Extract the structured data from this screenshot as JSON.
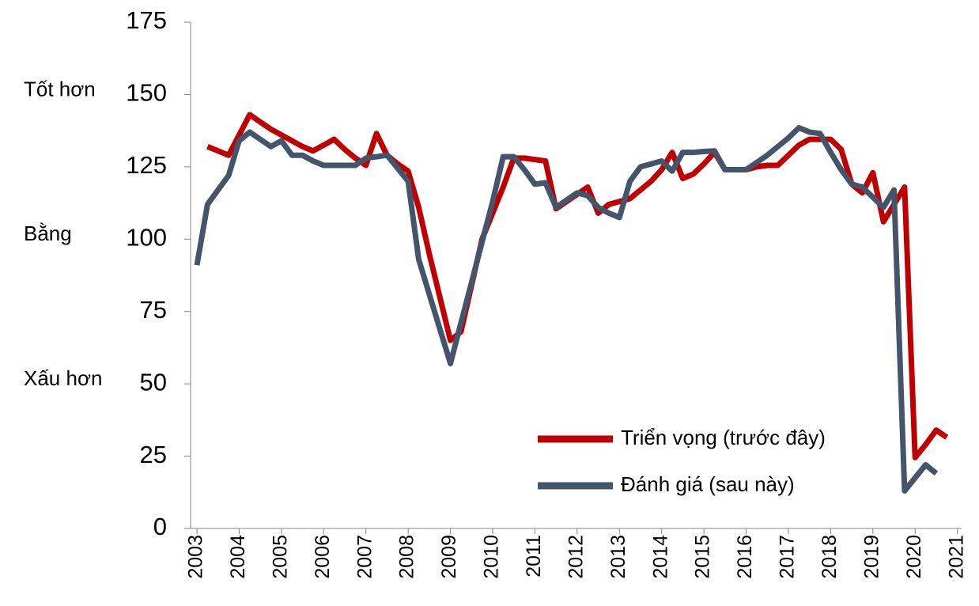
{
  "chart_data": {
    "type": "line",
    "x": [
      2003,
      2003.25,
      2003.5,
      2003.75,
      2004,
      2004.25,
      2004.5,
      2004.75,
      2005,
      2005.25,
      2005.5,
      2005.75,
      2006,
      2006.25,
      2006.5,
      2006.75,
      2007,
      2007.25,
      2007.5,
      2007.75,
      2008,
      2008.25,
      2008.5,
      2008.75,
      2009,
      2009.25,
      2009.5,
      2009.75,
      2010,
      2010.25,
      2010.5,
      2010.75,
      2011,
      2011.25,
      2011.5,
      2011.75,
      2012,
      2012.25,
      2012.5,
      2012.75,
      2013,
      2013.25,
      2013.5,
      2013.75,
      2014,
      2014.25,
      2014.5,
      2014.75,
      2015,
      2015.25,
      2015.5,
      2015.75,
      2016,
      2016.25,
      2016.5,
      2016.75,
      2017,
      2017.25,
      2017.5,
      2017.75,
      2018,
      2018.25,
      2018.5,
      2018.75,
      2019,
      2019.25,
      2019.5,
      2019.75,
      2020,
      2020.25,
      2020.5,
      2020.75
    ],
    "series": [
      {
        "name": "Triển vọng (trước đây)",
        "color": "#c00000",
        "values": [
          null,
          132,
          130.5,
          129,
          136,
          143,
          140.5,
          138,
          136,
          134,
          132,
          130.5,
          132.5,
          134.5,
          131,
          128,
          125.5,
          136.5,
          129,
          126,
          123.5,
          111,
          95,
          80,
          65,
          68,
          84,
          100,
          109,
          118,
          128,
          128,
          127.5,
          127,
          110.5,
          113,
          115.5,
          118,
          109,
          112,
          113,
          114,
          117,
          120,
          124,
          130,
          121,
          122.5,
          126,
          130,
          124,
          124,
          124,
          125,
          125.5,
          125.5,
          129,
          132.5,
          134.5,
          134.5,
          134.5,
          131,
          119,
          116,
          123,
          106,
          112,
          118,
          24.5,
          29,
          34,
          31.5
        ]
      },
      {
        "name": "Đánh giá (sau này)",
        "color": "#44546a",
        "values": [
          91,
          112,
          117,
          122,
          134,
          137,
          134.5,
          132,
          134,
          129,
          129,
          127,
          125.5,
          125.5,
          125.5,
          125.5,
          128,
          128.5,
          129,
          124.5,
          120,
          93,
          81,
          69,
          57,
          71,
          85,
          99,
          113,
          128.5,
          128.5,
          124,
          119,
          119.5,
          111,
          113.5,
          116,
          115,
          111,
          109,
          107.5,
          120,
          125,
          126,
          127,
          123.5,
          130,
          130,
          130.3,
          130.5,
          124,
          124,
          124,
          126.5,
          129,
          132,
          135,
          138.5,
          137,
          136.5,
          130,
          124,
          119,
          118,
          114.5,
          111,
          117,
          13,
          17.5,
          22,
          19,
          null
        ]
      }
    ],
    "xlim": [
      2002.85,
      2021.1
    ],
    "xticks": [
      2003,
      2004,
      2005,
      2006,
      2007,
      2008,
      2009,
      2010,
      2011,
      2012,
      2013,
      2014,
      2015,
      2016,
      2017,
      2018,
      2019,
      2020,
      2021
    ],
    "ylim": [
      0,
      175
    ],
    "yticks": [
      0,
      25,
      50,
      75,
      100,
      125,
      150,
      175
    ],
    "y_annotations": [
      {
        "value": 150,
        "label": "Tốt hơn"
      },
      {
        "value": 100,
        "label": "Bằng"
      },
      {
        "value": 50,
        "label": "Xấu hơn"
      }
    ],
    "legend": "lower right",
    "grid": false
  }
}
